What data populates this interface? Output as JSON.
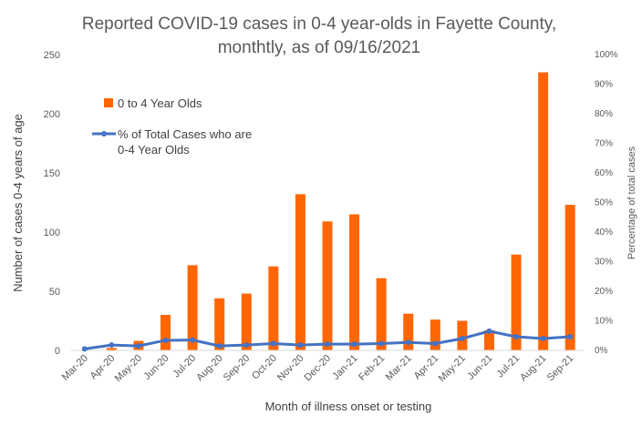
{
  "chart_data": {
    "type": "bar",
    "title_line1": "Reported COVID-19 cases in 0-4 year-olds in Fayette County,",
    "title_line2": "monthtly, as of 09/16/2021",
    "xlabel": "Month of illness onset or testing",
    "ylabel": "Number of cases 0-4 years of age",
    "y2label": "Percentage of total cases",
    "ylim": [
      0,
      250
    ],
    "y2lim": [
      0,
      100
    ],
    "yticks": [
      "0",
      "50",
      "100",
      "150",
      "200",
      "250"
    ],
    "y2ticks": [
      "0%",
      "10%",
      "20%",
      "30%",
      "40%",
      "50%",
      "60%",
      "70%",
      "80%",
      "90%",
      "100%"
    ],
    "grid": false,
    "legend_position": "top-left",
    "categories": [
      "Mar-20",
      "Apr-20",
      "May-20",
      "Jun-20",
      "Jul-20",
      "Aug-20",
      "Sep-20",
      "Oct-20",
      "Nov-20",
      "Dec-20",
      "Jan-21",
      "Feb-21",
      "Mar-21",
      "Apr-21",
      "May-21",
      "Jun-21",
      "Jul-21",
      "Aug-21",
      "Sep-21"
    ],
    "series": [
      {
        "name": "0 to 4 Year Olds",
        "type": "bar",
        "axis": "left",
        "color": "#ff6600",
        "values": [
          0,
          2,
          8,
          30,
          72,
          44,
          48,
          71,
          132,
          109,
          115,
          61,
          31,
          26,
          25,
          17,
          81,
          235,
          123
        ]
      },
      {
        "name_line1": "% of Total Cases who are",
        "name_line2": "0-4 Year Olds",
        "type": "line",
        "axis": "right",
        "color": "#4472c4",
        "values": [
          0.5,
          1.8,
          1.5,
          3.4,
          3.5,
          1.5,
          1.8,
          2.3,
          1.8,
          2.1,
          2.1,
          2.3,
          2.7,
          2.3,
          4.0,
          6.5,
          4.6,
          4.0,
          4.6
        ]
      }
    ]
  }
}
